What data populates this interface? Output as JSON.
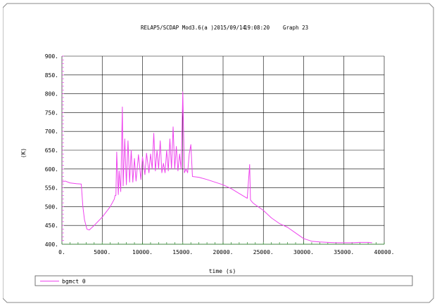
{
  "header": {
    "code": "RELAP5/SCDAP Mod3.6(a )2015/09/14",
    "time": "19:08:20",
    "graph": "Graph  23"
  },
  "colors": {
    "series": "#ee44ee",
    "grid": "#000000",
    "baseline": "#2c8a2c"
  },
  "chart_data": {
    "type": "line",
    "xlabel": "time (s)",
    "ylabel": "(K)",
    "xlim": [
      0,
      40000
    ],
    "ylim": [
      400,
      900
    ],
    "xticks": [
      0,
      5000,
      10000,
      15000,
      20000,
      25000,
      30000,
      35000,
      40000
    ],
    "xtick_labels": [
      "0.",
      "5000.",
      "10000.",
      "15000.",
      "20000.",
      "25000.",
      "30000.",
      "35000.",
      "40000."
    ],
    "yticks": [
      400,
      450,
      500,
      550,
      600,
      650,
      700,
      750,
      800,
      850,
      900
    ],
    "ytick_labels": [
      "400.",
      "450.",
      "500.",
      "550.",
      "600.",
      "650.",
      "700.",
      "750.",
      "800.",
      "850.",
      "900."
    ],
    "grid": true,
    "legend_position": "bottom",
    "series": [
      {
        "name": "bgmct 0",
        "x": [
          0,
          400,
          1000,
          1800,
          2400,
          2600,
          2800,
          3100,
          3400,
          4000,
          5000,
          6000,
          6500,
          6600,
          6700,
          6800,
          7000,
          7100,
          7300,
          7500,
          7600,
          7800,
          8000,
          8200,
          8400,
          8600,
          8800,
          9000,
          9200,
          9500,
          9800,
          10000,
          10300,
          10500,
          10800,
          11000,
          11200,
          11400,
          11600,
          11800,
          12000,
          12200,
          12400,
          12600,
          12800,
          13000,
          13200,
          13400,
          13600,
          13800,
          14000,
          14200,
          14400,
          14600,
          14800,
          15000,
          15200,
          15400,
          15600,
          15800,
          16000,
          16200,
          17000,
          18000,
          19000,
          20000,
          21000,
          22000,
          23000,
          23300,
          23400,
          23500,
          23700,
          24000,
          25000,
          26000,
          27000,
          28000,
          29000,
          30000,
          31000,
          32000,
          33000,
          34000,
          35000,
          36000,
          37000,
          38000,
          38500
        ],
        "y": [
          565,
          568,
          563,
          561,
          560,
          500,
          465,
          440,
          438,
          450,
          472,
          500,
          520,
          530,
          530,
          645,
          532,
          595,
          540,
          765,
          555,
          680,
          558,
          675,
          565,
          650,
          565,
          628,
          568,
          638,
          572,
          632,
          585,
          642,
          590,
          640,
          600,
          695,
          595,
          650,
          600,
          675,
          590,
          615,
          590,
          650,
          595,
          680,
          600,
          712,
          600,
          660,
          595,
          640,
          600,
          805,
          590,
          600,
          590,
          640,
          665,
          580,
          578,
          572,
          565,
          558,
          548,
          535,
          522,
          612,
          518,
          515,
          510,
          505,
          490,
          470,
          455,
          445,
          430,
          415,
          408,
          406,
          405,
          404,
          404,
          404,
          405,
          405,
          404
        ]
      }
    ]
  }
}
